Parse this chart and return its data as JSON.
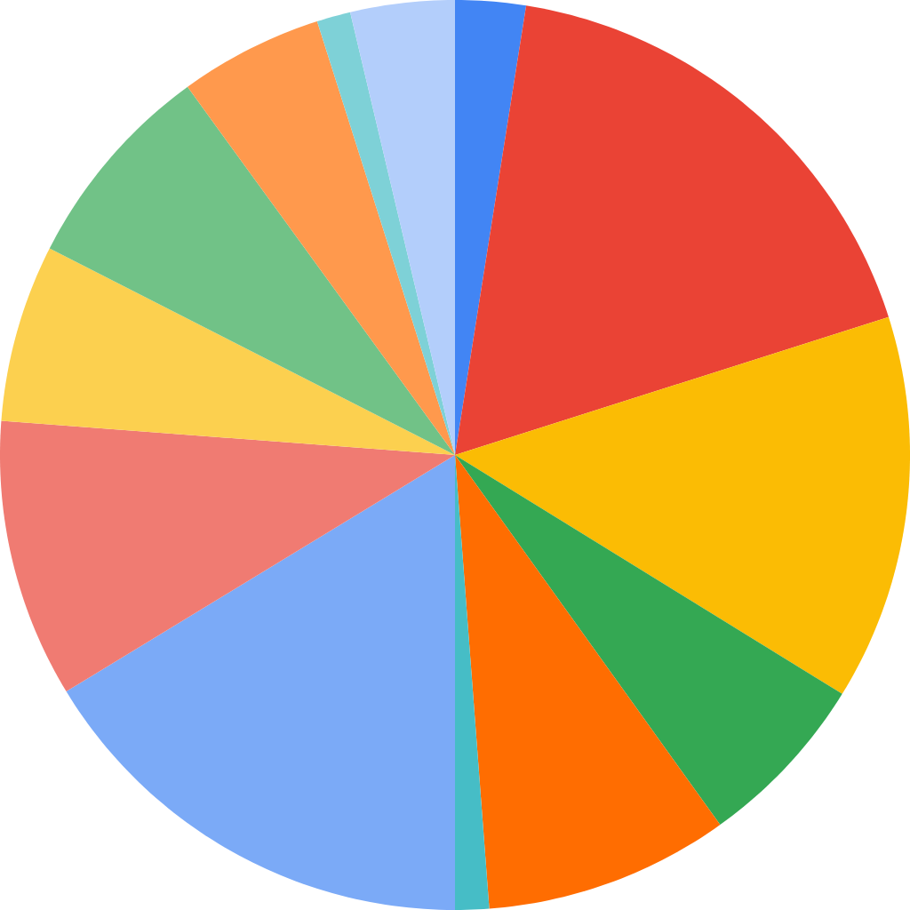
{
  "chart_data": {
    "type": "pie",
    "categories": [
      null,
      null,
      null,
      null,
      null,
      null,
      null,
      null,
      null,
      null,
      null,
      null,
      null
    ],
    "values": [
      2.5,
      17.6,
      13.7,
      6.3,
      8.7,
      1.2,
      16.3,
      9.9,
      6.3,
      7.5,
      5.1,
      1.2,
      3.7
    ],
    "colors": [
      "#4285f4",
      "#ea4335",
      "#fbbc04",
      "#34a853",
      "#ff6d01",
      "#46bdc6",
      "#7baaf7",
      "#f07b72",
      "#fcd04f",
      "#71c287",
      "#ff994d",
      "#7ed1d7",
      "#b3cefb"
    ]
  }
}
